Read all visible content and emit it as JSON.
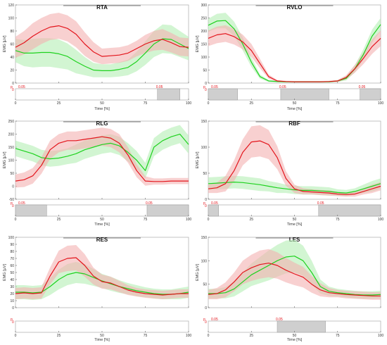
{
  "colors": {
    "series_red": "#e3141b",
    "series_green": "#1ed21e",
    "band_red": "#f4b0b0",
    "band_green": "#b4eeb4",
    "sig_fill": "#cfcfcf",
    "axis": "#333333",
    "pval_text": "#e3141b"
  },
  "chart_data": [
    {
      "title": "RTA",
      "type": "line",
      "ylabel": "EMG [µV]",
      "xlabel": "Time [%]",
      "ylim": [
        0,
        120
      ],
      "yticks": [
        0,
        20,
        40,
        60,
        80,
        100,
        120
      ],
      "xticks": [
        0,
        25,
        50,
        75,
        100
      ],
      "x": [
        0,
        5,
        10,
        15,
        20,
        25,
        30,
        35,
        40,
        45,
        50,
        55,
        60,
        65,
        70,
        75,
        80,
        85,
        90,
        95,
        100
      ],
      "series": [
        {
          "color": "red",
          "values": [
            55,
            62,
            72,
            80,
            86,
            88,
            84,
            75,
            60,
            48,
            41,
            42,
            43,
            46,
            53,
            60,
            65,
            67,
            62,
            56,
            55
          ],
          "band": [
            16,
            18,
            20,
            20,
            20,
            20,
            20,
            20,
            18,
            15,
            12,
            12,
            12,
            12,
            12,
            14,
            15,
            16,
            15,
            14,
            14
          ]
        },
        {
          "color": "green",
          "values": [
            50,
            46,
            46,
            47,
            47,
            45,
            41,
            33,
            26,
            20,
            19,
            19,
            21,
            24,
            33,
            46,
            60,
            68,
            67,
            60,
            53
          ],
          "band": [
            18,
            20,
            22,
            22,
            22,
            22,
            20,
            18,
            14,
            11,
            10,
            10,
            11,
            12,
            15,
            18,
            20,
            22,
            22,
            20,
            18
          ]
        }
      ],
      "pvalue_label": "0.05",
      "pvalue_axis": {
        "p_label": "p",
        "zero_label": "0"
      },
      "significant_ranges": [
        [
          82,
          95
        ]
      ]
    },
    {
      "title": "RVLO",
      "type": "line",
      "ylabel": "EMG [µV]",
      "xlabel": "Time [%]",
      "ylim": [
        0,
        300
      ],
      "yticks": [
        0,
        50,
        100,
        150,
        200,
        250,
        300
      ],
      "xticks": [
        0,
        25,
        50,
        75,
        100
      ],
      "x": [
        0,
        5,
        10,
        15,
        20,
        25,
        30,
        35,
        40,
        45,
        50,
        55,
        60,
        65,
        70,
        75,
        80,
        85,
        90,
        95,
        100
      ],
      "series": [
        {
          "color": "red",
          "values": [
            172,
            185,
            190,
            178,
            158,
            125,
            75,
            25,
            8,
            6,
            5,
            5,
            5,
            5,
            6,
            8,
            22,
            55,
            95,
            140,
            172
          ],
          "band": [
            30,
            32,
            32,
            30,
            28,
            25,
            18,
            8,
            4,
            3,
            3,
            3,
            3,
            3,
            3,
            4,
            8,
            15,
            22,
            28,
            30
          ]
        },
        {
          "color": "green",
          "values": [
            222,
            238,
            240,
            208,
            150,
            80,
            25,
            8,
            6,
            5,
            5,
            5,
            5,
            5,
            5,
            8,
            18,
            55,
            110,
            180,
            225
          ],
          "band": [
            25,
            28,
            30,
            28,
            25,
            18,
            8,
            4,
            3,
            3,
            3,
            3,
            3,
            3,
            3,
            4,
            8,
            14,
            20,
            25,
            25
          ]
        }
      ],
      "pvalue_label": "0.05",
      "pvalue_axis": {
        "p_label": "p",
        "zero_label": "0"
      },
      "significant_ranges": [
        [
          0,
          17
        ],
        [
          42,
          70
        ],
        [
          88,
          100
        ]
      ]
    },
    {
      "title": "RLG",
      "type": "line",
      "ylabel": "EMG [µV]",
      "xlabel": "Time [%]",
      "ylim": [
        -50,
        250
      ],
      "yticks": [
        -50,
        0,
        50,
        100,
        150,
        200,
        250
      ],
      "xticks": [
        0,
        25,
        50,
        75,
        100
      ],
      "x": [
        0,
        5,
        10,
        15,
        20,
        25,
        30,
        35,
        40,
        45,
        50,
        55,
        60,
        65,
        70,
        75,
        80,
        85,
        90,
        95,
        100
      ],
      "series": [
        {
          "color": "red",
          "values": [
            20,
            25,
            40,
            80,
            140,
            165,
            175,
            175,
            180,
            185,
            190,
            185,
            165,
            120,
            60,
            20,
            18,
            18,
            20,
            20,
            20
          ],
          "band": [
            25,
            28,
            30,
            32,
            35,
            35,
            35,
            35,
            35,
            35,
            35,
            35,
            35,
            30,
            25,
            18,
            12,
            12,
            12,
            12,
            12
          ]
        },
        {
          "color": "green",
          "values": [
            145,
            135,
            125,
            110,
            105,
            108,
            115,
            125,
            140,
            150,
            160,
            165,
            155,
            130,
            100,
            60,
            150,
            175,
            190,
            200,
            160
          ],
          "band": [
            30,
            30,
            30,
            30,
            30,
            30,
            30,
            35,
            35,
            35,
            35,
            35,
            35,
            35,
            35,
            30,
            35,
            35,
            35,
            35,
            35
          ]
        }
      ],
      "pvalue_label": "0.05",
      "pvalue_axis": {
        "p_label": "p",
        "zero_label": "0"
      },
      "significant_ranges": [
        [
          0,
          18
        ],
        [
          76,
          100
        ]
      ]
    },
    {
      "title": "RBF",
      "type": "line",
      "ylabel": "EMG [µV]",
      "xlabel": "Time [%]",
      "ylim": [
        0,
        150
      ],
      "yticks": [
        0,
        50,
        100,
        150
      ],
      "xticks": [
        0,
        25,
        50,
        75,
        100
      ],
      "x": [
        0,
        5,
        10,
        15,
        20,
        25,
        30,
        35,
        40,
        45,
        50,
        55,
        60,
        65,
        70,
        75,
        80,
        85,
        90,
        95,
        100
      ],
      "series": [
        {
          "color": "red",
          "values": [
            20,
            22,
            30,
            55,
            90,
            110,
            112,
            105,
            80,
            40,
            20,
            15,
            14,
            13,
            12,
            10,
            9,
            10,
            15,
            20,
            25
          ],
          "band": [
            8,
            10,
            15,
            20,
            25,
            30,
            30,
            28,
            22,
            14,
            8,
            6,
            5,
            5,
            5,
            4,
            4,
            5,
            6,
            8,
            8
          ]
        },
        {
          "color": "green",
          "values": [
            30,
            31,
            32,
            33,
            32,
            30,
            28,
            25,
            22,
            20,
            18,
            17,
            17,
            16,
            15,
            13,
            12,
            15,
            20,
            25,
            30
          ],
          "band": [
            12,
            12,
            12,
            12,
            12,
            12,
            12,
            10,
            10,
            8,
            8,
            8,
            8,
            8,
            8,
            6,
            6,
            6,
            8,
            10,
            10
          ]
        }
      ],
      "pvalue_label": "0.05",
      "pvalue_axis": {
        "p_label": "p",
        "zero_label": "0"
      },
      "significant_ranges": [
        [
          0,
          6
        ],
        [
          64,
          100
        ]
      ]
    },
    {
      "title": "RES",
      "type": "line",
      "ylabel": "EMG [µV]",
      "xlabel": "Time [%]",
      "ylim": [
        0,
        100
      ],
      "yticks": [
        0,
        10,
        20,
        30,
        40,
        50,
        60,
        70,
        80,
        90,
        100
      ],
      "xticks": [
        0,
        25,
        50,
        75,
        100
      ],
      "x": [
        0,
        5,
        10,
        15,
        20,
        25,
        30,
        35,
        40,
        45,
        50,
        55,
        60,
        65,
        70,
        75,
        80,
        85,
        90,
        95,
        100
      ],
      "series": [
        {
          "color": "red",
          "values": [
            20,
            21,
            20,
            21,
            45,
            65,
            70,
            71,
            60,
            45,
            37,
            35,
            30,
            25,
            22,
            20,
            19,
            18,
            19,
            20,
            20
          ],
          "band": [
            8,
            8,
            8,
            8,
            12,
            16,
            18,
            18,
            16,
            12,
            10,
            9,
            8,
            7,
            6,
            6,
            6,
            6,
            6,
            6,
            6
          ]
        },
        {
          "color": "green",
          "values": [
            22,
            22,
            21,
            22,
            30,
            40,
            47,
            50,
            48,
            43,
            38,
            34,
            30,
            27,
            24,
            22,
            20,
            19,
            19,
            20,
            22
          ],
          "band": [
            10,
            10,
            10,
            10,
            12,
            14,
            15,
            15,
            14,
            12,
            10,
            10,
            9,
            8,
            8,
            7,
            7,
            7,
            7,
            8,
            8
          ]
        }
      ],
      "pvalue_label": "",
      "pvalue_axis": {
        "p_label": "p",
        "zero_label": "0"
      },
      "significant_ranges": []
    },
    {
      "title": "LES",
      "type": "line",
      "ylabel": "EMG [µV]",
      "xlabel": "Time [%]",
      "ylim": [
        0,
        150
      ],
      "yticks": [
        0,
        50,
        100,
        150
      ],
      "xticks": [
        0,
        25,
        50,
        75,
        100
      ],
      "x": [
        0,
        5,
        10,
        15,
        20,
        25,
        30,
        35,
        40,
        45,
        50,
        55,
        60,
        65,
        70,
        75,
        80,
        85,
        90,
        95,
        100
      ],
      "series": [
        {
          "color": "red",
          "values": [
            28,
            30,
            38,
            55,
            75,
            85,
            92,
            95,
            90,
            80,
            72,
            65,
            50,
            38,
            32,
            30,
            28,
            27,
            26,
            25,
            25
          ],
          "band": [
            10,
            12,
            16,
            20,
            25,
            28,
            30,
            30,
            28,
            26,
            24,
            22,
            18,
            14,
            10,
            8,
            8,
            8,
            8,
            8,
            8
          ]
        },
        {
          "color": "green",
          "values": [
            30,
            30,
            32,
            40,
            55,
            70,
            80,
            90,
            100,
            108,
            110,
            100,
            75,
            45,
            35,
            32,
            30,
            28,
            27,
            27,
            28
          ],
          "band": [
            10,
            10,
            12,
            16,
            20,
            24,
            28,
            32,
            34,
            35,
            35,
            32,
            25,
            15,
            10,
            8,
            8,
            8,
            8,
            8,
            8
          ]
        }
      ],
      "pvalue_label": "0.05",
      "pvalue_axis": {
        "p_label": "p",
        "zero_label": "0"
      },
      "significant_ranges": [
        [
          40,
          68
        ]
      ]
    }
  ]
}
